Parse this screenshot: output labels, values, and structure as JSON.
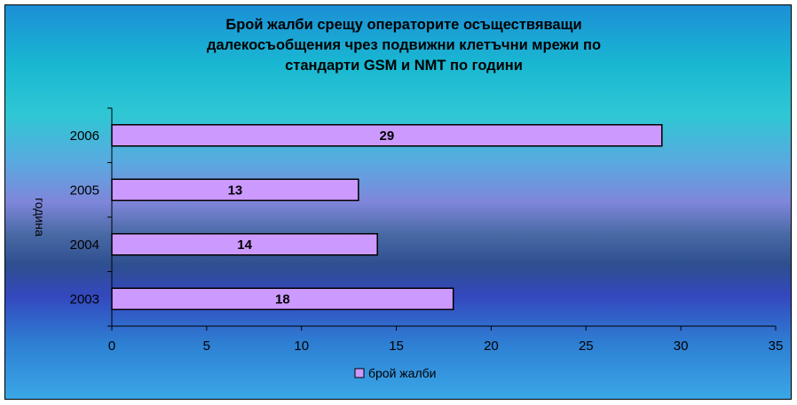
{
  "chart_data": {
    "type": "bar",
    "orientation": "horizontal",
    "title": [
      "Брой жалби срещу операторите осъществяващи",
      "далекосъобщения чрез подвижни клетъчни мрежи по",
      "стандарти GSM и NMT по години"
    ],
    "ylabel": "година",
    "xlabel": "",
    "categories": [
      "2006",
      "2005",
      "2004",
      "2003"
    ],
    "series": [
      {
        "name": "брой жалби",
        "values": [
          29,
          13,
          14,
          18
        ]
      }
    ],
    "xlim": [
      0,
      35
    ],
    "xticks": [
      0,
      5,
      10,
      15,
      20,
      25,
      30,
      35
    ],
    "grid": false,
    "legend_position": "bottom",
    "bar_color": "#cc99ff"
  }
}
